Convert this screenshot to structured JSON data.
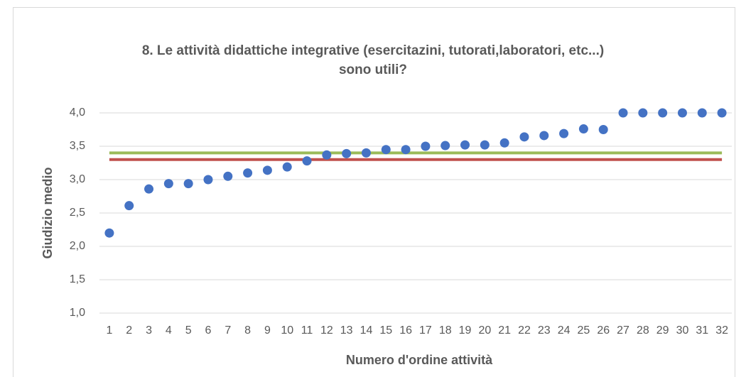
{
  "chart_data": {
    "type": "line",
    "title": "8. Le attività didattiche integrative (esercitazini, tutorati,laboratori, etc...)\nsono utili?",
    "x_label": "Numero d'ordine attività",
    "y_label": "Giudizio medio",
    "categories": [
      1,
      2,
      3,
      4,
      5,
      6,
      7,
      8,
      9,
      10,
      11,
      12,
      13,
      14,
      15,
      16,
      17,
      18,
      19,
      20,
      21,
      22,
      23,
      24,
      25,
      26,
      27,
      28,
      29,
      30,
      31,
      32
    ],
    "series": [
      {
        "style": "markers",
        "color": "#4472c4",
        "values": [
          2.2,
          2.61,
          2.86,
          2.94,
          2.94,
          3.0,
          3.05,
          3.1,
          3.14,
          3.19,
          3.28,
          3.37,
          3.39,
          3.4,
          3.45,
          3.45,
          3.5,
          3.51,
          3.52,
          3.52,
          3.55,
          3.64,
          3.66,
          3.69,
          3.76,
          3.75,
          4.0,
          4.0,
          4.0,
          4.0,
          4.0,
          4.0
        ]
      },
      {
        "style": "line",
        "color": "#9bbb59",
        "values": [
          3.4,
          3.4,
          3.4,
          3.4,
          3.4,
          3.4,
          3.4,
          3.4,
          3.4,
          3.4,
          3.4,
          3.4,
          3.4,
          3.4,
          3.4,
          3.4,
          3.4,
          3.4,
          3.4,
          3.4,
          3.4,
          3.4,
          3.4,
          3.4,
          3.4,
          3.4,
          3.4,
          3.4,
          3.4,
          3.4,
          3.4,
          3.4
        ]
      },
      {
        "style": "line",
        "color": "#c0504d",
        "values": [
          3.3,
          3.3,
          3.3,
          3.3,
          3.3,
          3.3,
          3.3,
          3.3,
          3.3,
          3.3,
          3.3,
          3.3,
          3.3,
          3.3,
          3.3,
          3.3,
          3.3,
          3.3,
          3.3,
          3.3,
          3.3,
          3.3,
          3.3,
          3.3,
          3.3,
          3.3,
          3.3,
          3.3,
          3.3,
          3.3,
          3.3,
          3.3
        ]
      }
    ],
    "ylim": [
      1,
      4
    ],
    "yticks": [
      {
        "value": 1,
        "label": "1,0"
      },
      {
        "value": 1.5,
        "label": "1,5"
      },
      {
        "value": 2,
        "label": "2,0"
      },
      {
        "value": 2.5,
        "label": "2,5"
      },
      {
        "value": 3,
        "label": "3,0"
      },
      {
        "value": 3.5,
        "label": "3,5"
      },
      {
        "value": 4,
        "label": "4,0"
      }
    ],
    "grid": true
  }
}
